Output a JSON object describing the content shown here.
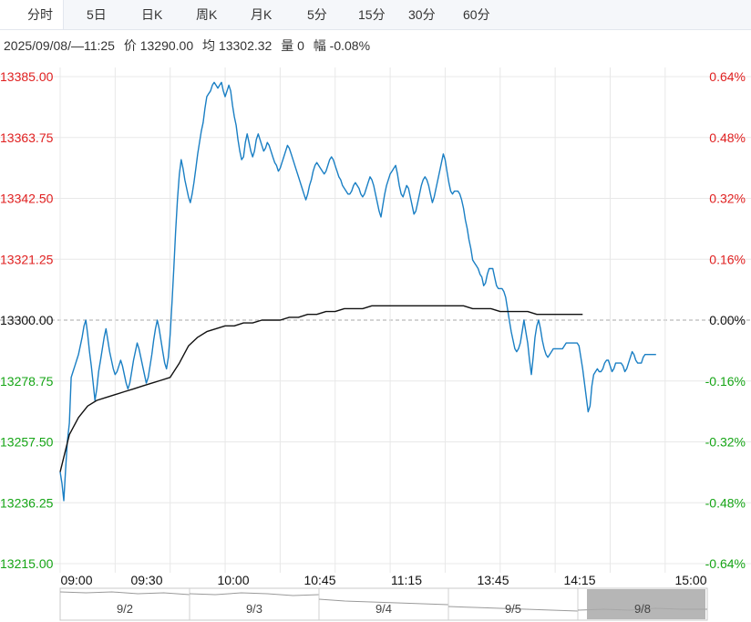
{
  "tabs": [
    "分时",
    "5日",
    "日K",
    "周K",
    "月K",
    "5分",
    "15分",
    "30分",
    "60分"
  ],
  "active_tab": "分时",
  "info": {
    "datetime": "2025/09/08/—11:25",
    "price": "价 13290.00",
    "avg": "均 13302.32",
    "volume": "量 0",
    "change": "幅 -0.08%"
  },
  "colors": {
    "up": "#e02020",
    "down": "#16a516",
    "neutral": "#111111",
    "price_line": "#1a7fc4",
    "avg_line": "#111111",
    "grid": "#e8e8e8"
  },
  "chart_data": {
    "type": "line",
    "title": "",
    "prev_close": 13300.0,
    "ylim": [
      13215.0,
      13385.0
    ],
    "y_ticks": [
      "13385.00",
      "13363.75",
      "13342.50",
      "13321.25",
      "13300.00",
      "13278.75",
      "13257.50",
      "13236.25",
      "13215.00"
    ],
    "pct_ticks": [
      "0.64%",
      "0.48%",
      "0.32%",
      "0.16%",
      "0.00%",
      "-0.16%",
      "-0.32%",
      "-0.48%",
      "-0.64%"
    ],
    "x_labels": [
      "09:00",
      "09:30",
      "10:00",
      "10:45",
      "11:15",
      "13:45",
      "14:15",
      "15:00"
    ],
    "total_minutes": 345,
    "grid": true,
    "series": [
      {
        "role": "price",
        "minute_step": 1,
        "values": [
          13247,
          13243,
          13237,
          13248,
          13258,
          13264,
          13280,
          13282,
          13284,
          13286,
          13288,
          13291,
          13294,
          13298,
          13300,
          13295,
          13289,
          13284,
          13278,
          13272,
          13276,
          13282,
          13286,
          13290,
          13294,
          13297,
          13293,
          13289,
          13286,
          13283,
          13281,
          13282,
          13284,
          13286,
          13284,
          13281,
          13278,
          13276,
          13278,
          13282,
          13286,
          13289,
          13292,
          13290,
          13287,
          13284,
          13281,
          13278,
          13280,
          13284,
          13288,
          13293,
          13297,
          13300,
          13297,
          13293,
          13289,
          13285,
          13283,
          13287,
          13295,
          13306,
          13318,
          13331,
          13342,
          13351,
          13356,
          13353,
          13349,
          13346,
          13343,
          13341,
          13344,
          13348,
          13353,
          13358,
          13362,
          13366,
          13369,
          13374,
          13378,
          13379,
          13380,
          13382,
          13383,
          13382,
          13381,
          13382,
          13383,
          13380,
          13378,
          13380,
          13382,
          13380,
          13375,
          13371,
          13368,
          13363,
          13359,
          13356,
          13357,
          13362,
          13365,
          13362,
          13359,
          13357,
          13359,
          13363,
          13365,
          13363,
          13361,
          13359,
          13360,
          13362,
          13361,
          13359,
          13357,
          13355,
          13354,
          13352,
          13353,
          13355,
          13357,
          13359,
          13361,
          13360,
          13358,
          13356,
          13354,
          13352,
          13350,
          13348,
          13346,
          13344,
          13342,
          13344,
          13347,
          13349,
          13352,
          13354,
          13355,
          13354,
          13353,
          13352,
          13351,
          13352,
          13354,
          13356,
          13357,
          13356,
          13354,
          13352,
          13350,
          13349,
          13347,
          13346,
          13345,
          13344,
          13344,
          13345,
          13347,
          13348,
          13347,
          13346,
          13344,
          13343,
          13344,
          13346,
          13348,
          13350,
          13349,
          13347,
          13344,
          13341,
          13338,
          13336,
          13340,
          13344,
          13347,
          13349,
          13351,
          13352,
          13353,
          13354,
          13351,
          13347,
          13344,
          13343,
          13345,
          13347,
          13346,
          13343,
          13340,
          13337,
          13338,
          13341,
          13344,
          13347,
          13349,
          13350,
          13349,
          13347,
          13344,
          13341,
          13343,
          13346,
          13349,
          13352,
          13355,
          13358,
          13356,
          13352,
          13348,
          13345,
          13344,
          13345,
          13345,
          13345,
          13344,
          13342,
          13339,
          13335,
          13332,
          13328,
          13325,
          13321,
          13320,
          13319,
          13318,
          13316,
          13315,
          13312,
          13313,
          13316,
          13318,
          13318,
          13318,
          13315,
          13312,
          13311,
          13311,
          13311,
          13310,
          13308,
          13304,
          13300,
          13296,
          13293,
          13290,
          13289,
          13290,
          13292,
          13296,
          13300,
          13296,
          13292,
          13286,
          13281,
          13287,
          13294,
          13298,
          13300,
          13297,
          13293,
          13290,
          13288,
          13287,
          13288,
          13289,
          13290,
          13290,
          13290,
          13290,
          13290,
          13290,
          13291,
          13292,
          13292,
          13292,
          13292,
          13292,
          13292,
          13292,
          13291,
          13287,
          13283,
          13278,
          13273,
          13268,
          13270,
          13277,
          13281,
          13282,
          13283,
          13282,
          13282,
          13283,
          13285,
          13286,
          13286,
          13284,
          13282,
          13283,
          13285,
          13285,
          13285,
          13285,
          13284,
          13282,
          13283,
          13285,
          13287,
          13289,
          13288,
          13286,
          13285,
          13285,
          13285,
          13287,
          13288,
          13288,
          13288,
          13288,
          13288,
          13288,
          13288
        ]
      },
      {
        "role": "average",
        "minute_step": 5,
        "values": [
          13247,
          13260,
          13266,
          13270,
          13272,
          13273,
          13274,
          13275,
          13276,
          13277,
          13278,
          13279,
          13280,
          13285,
          13291,
          13294,
          13296,
          13297,
          13298,
          13298,
          13299,
          13299,
          13300,
          13300,
          13300,
          13301,
          13301,
          13302,
          13302,
          13303,
          13303,
          13304,
          13304,
          13304,
          13305,
          13305,
          13305,
          13305,
          13305,
          13305,
          13305,
          13305,
          13305,
          13305,
          13305,
          13304,
          13304,
          13304,
          13303,
          13303,
          13303,
          13303,
          13302,
          13302,
          13302,
          13302,
          13302,
          13302
        ]
      }
    ]
  },
  "navigator": {
    "labels": [
      "9/2",
      "9/3",
      "9/4",
      "9/5",
      "9/8"
    ],
    "selected": "9/8"
  }
}
